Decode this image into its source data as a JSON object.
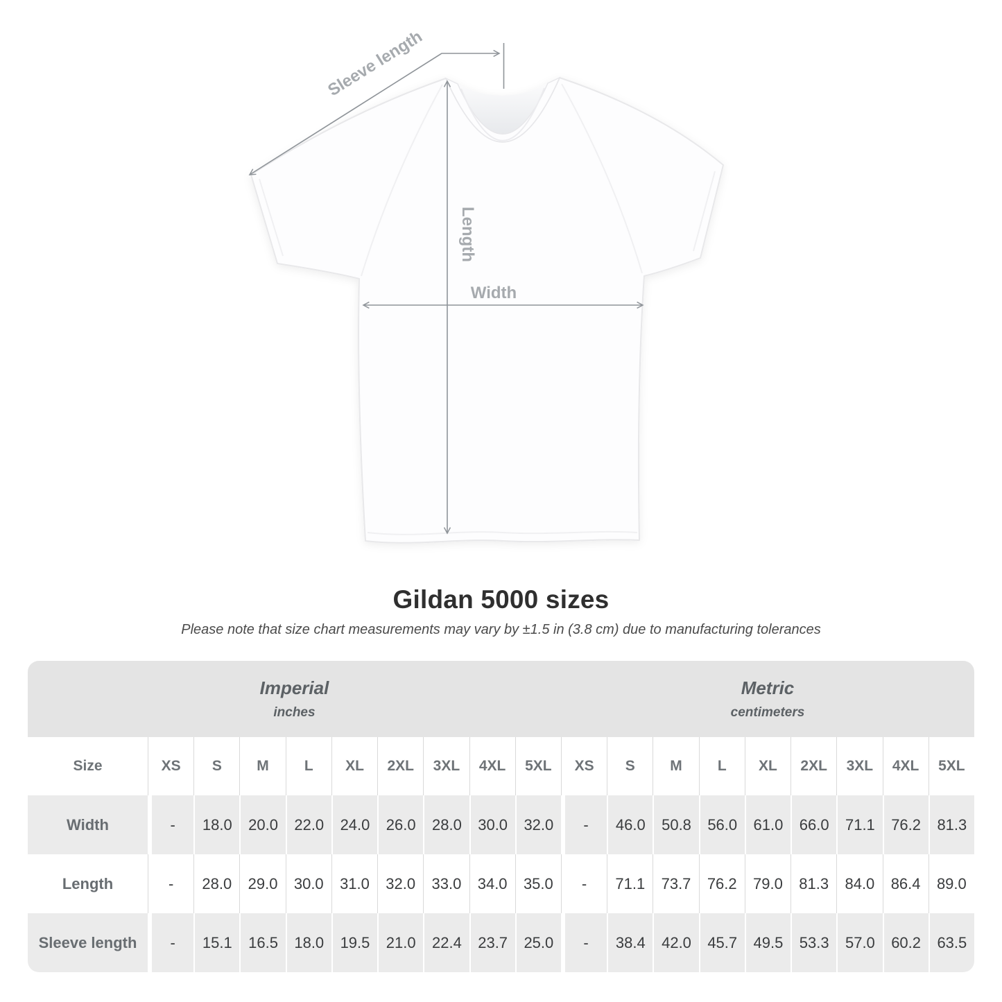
{
  "figure": {
    "labels": {
      "sleeve": "Sleeve length",
      "length": "Length",
      "width": "Width"
    }
  },
  "colors": {
    "annotation_line": "#8f9499",
    "annotation_text": "#a6aaae",
    "band_bg": "#e4e4e4",
    "row_shade_bg": "#ebebeb",
    "header_text": "#6e7377",
    "value_text": "#3a3c3e"
  },
  "chart_data": {
    "type": "table",
    "title": "Gildan 5000 sizes",
    "subtitle": "Please note that size chart measurements may vary by ±1.5 in (3.8 cm) due to manufacturing tolerances",
    "size_header": "Size",
    "groups": [
      {
        "label": "Imperial",
        "sublabel": "inches"
      },
      {
        "label": "Metric",
        "sublabel": "centimeters"
      }
    ],
    "sizes": [
      "XS",
      "S",
      "M",
      "L",
      "XL",
      "2XL",
      "3XL",
      "4XL",
      "5XL"
    ],
    "rows": [
      {
        "label": "Width",
        "imperial": [
          "-",
          "18.0",
          "20.0",
          "22.0",
          "24.0",
          "26.0",
          "28.0",
          "30.0",
          "32.0"
        ],
        "metric": [
          "-",
          "46.0",
          "50.8",
          "56.0",
          "61.0",
          "66.0",
          "71.1",
          "76.2",
          "81.3"
        ]
      },
      {
        "label": "Length",
        "imperial": [
          "-",
          "28.0",
          "29.0",
          "30.0",
          "31.0",
          "32.0",
          "33.0",
          "34.0",
          "35.0"
        ],
        "metric": [
          "-",
          "71.1",
          "73.7",
          "76.2",
          "79.0",
          "81.3",
          "84.0",
          "86.4",
          "89.0"
        ]
      },
      {
        "label": "Sleeve length",
        "imperial": [
          "-",
          "15.1",
          "16.5",
          "18.0",
          "19.5",
          "21.0",
          "22.4",
          "23.7",
          "25.0"
        ],
        "metric": [
          "-",
          "38.4",
          "42.0",
          "45.7",
          "49.5",
          "53.3",
          "57.0",
          "60.2",
          "63.5"
        ]
      }
    ]
  }
}
